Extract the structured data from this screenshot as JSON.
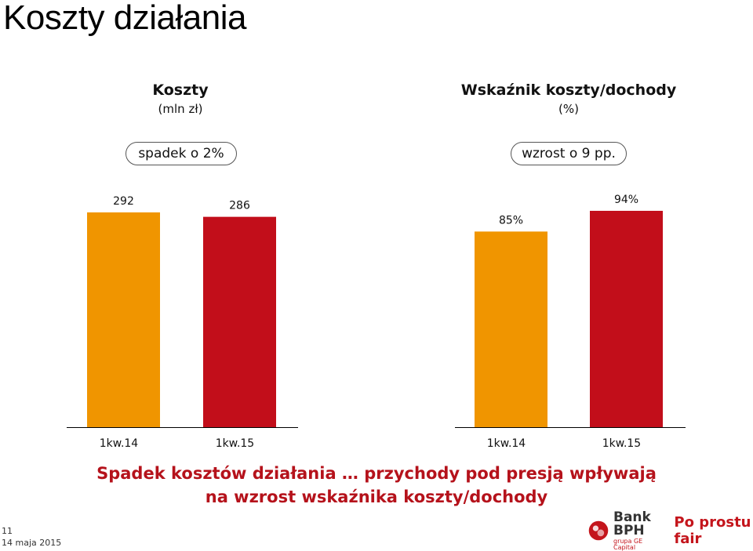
{
  "page": {
    "title": "Koszty działania",
    "headline_line1": "Spadek kosztów działania … przychody pod presją wpływają",
    "headline_line2": "na wzrost wskaźnika koszty/dochody",
    "slide_number": "11",
    "date": "14 maja 2015",
    "logo_name": "Bank BPH",
    "logo_sub": "grupa GE Capital",
    "slogan": "Po prostu fair"
  },
  "colors": {
    "bar_prev": "#f09500",
    "bar_curr": "#c20e1a",
    "headline": "#b5121b"
  },
  "chart_data": [
    {
      "type": "bar",
      "title": "Koszty",
      "unit": "(mln zł)",
      "badge": "spadek o 2%",
      "categories": [
        "1kw.14",
        "1kw.15"
      ],
      "values": [
        292,
        286
      ],
      "labels": [
        "292",
        "286"
      ],
      "ylim": [
        0,
        292
      ]
    },
    {
      "type": "bar",
      "title": "Wskaźnik koszty/dochody",
      "unit": "(%)",
      "badge": "wzrost o 9 pp.",
      "categories": [
        "1kw.14",
        "1kw.15"
      ],
      "values": [
        85,
        94
      ],
      "labels": [
        "85%",
        "94%"
      ],
      "ylim": [
        0,
        110
      ]
    }
  ]
}
